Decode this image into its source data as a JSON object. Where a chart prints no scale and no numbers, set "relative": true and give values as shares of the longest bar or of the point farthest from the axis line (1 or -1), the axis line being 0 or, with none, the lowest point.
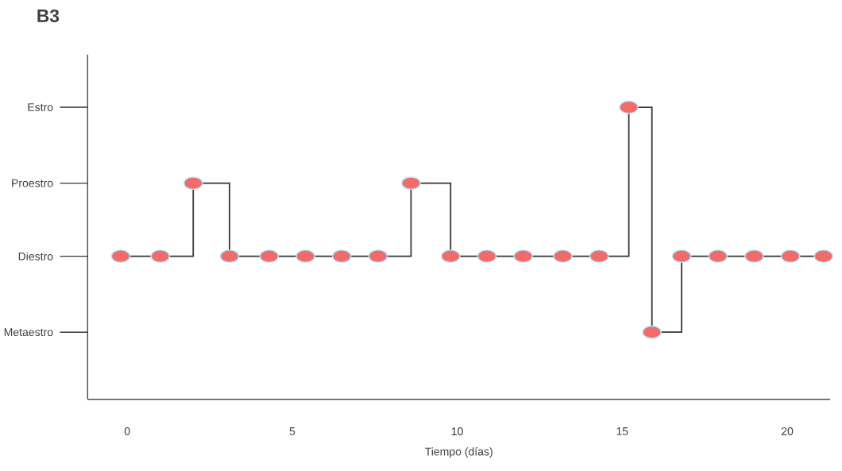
{
  "chart_data": {
    "type": "step",
    "title": "B3",
    "xlabel": "Tiempo (días)",
    "relative": true,
    "x": [
      -0.2,
      1.0,
      2.0,
      3.1,
      4.3,
      5.4,
      6.5,
      7.6,
      8.6,
      9.8,
      10.9,
      12.0,
      13.2,
      14.3,
      15.2,
      15.9,
      16.8,
      17.9,
      19.0,
      20.1,
      21.1
    ],
    "series": [
      {
        "color": "#f26b6b",
        "values": [
          0.49,
          0.49,
          0.74,
          0.49,
          0.49,
          0.49,
          0.49,
          0.49,
          0.74,
          0.49,
          0.49,
          0.49,
          0.49,
          0.49,
          1.0,
          0.23,
          0.49,
          0.49,
          0.49,
          0.49,
          0.49
        ]
      }
    ],
    "xlim": [
      -1.2,
      21.3
    ],
    "xticks": [
      0,
      5,
      10,
      15,
      20
    ],
    "annotations": [
      "Estro",
      "Proestro",
      "Diestro",
      "Metaestro"
    ],
    "marker": "circle",
    "grid": false
  }
}
